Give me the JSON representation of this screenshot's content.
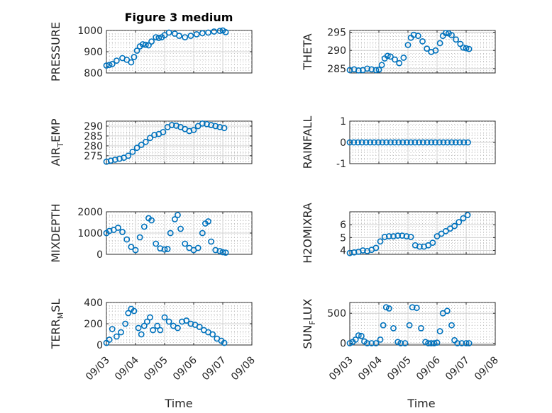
{
  "figure": {
    "title": "Figure 3 medium",
    "xlabel": "Time",
    "x_tick_labels": [
      "09/03",
      "09/04",
      "09/05",
      "09/06",
      "09/07",
      "09/08"
    ],
    "marker_color": "#0072BD"
  },
  "chart_data": [
    {
      "type": "scatter",
      "title": "Figure 3 medium",
      "ylabel": "PRESSURE",
      "ylabel_parts": [
        "PRESSURE"
      ],
      "xlim": [
        0,
        5
      ],
      "ylim": [
        800,
        1000
      ],
      "yticks": [
        800,
        900,
        1000
      ],
      "grid": true,
      "x": [
        0.0,
        0.1,
        0.2,
        0.35,
        0.55,
        0.7,
        0.85,
        0.95,
        1.05,
        1.15,
        1.25,
        1.35,
        1.45,
        1.55,
        1.7,
        1.8,
        1.9,
        2.0,
        2.15,
        2.35,
        2.5,
        2.7,
        2.9,
        3.1,
        3.3,
        3.5,
        3.7,
        3.9,
        4.0,
        4.1
      ],
      "y": [
        835,
        838,
        842,
        858,
        870,
        862,
        850,
        875,
        905,
        925,
        935,
        933,
        930,
        948,
        968,
        965,
        968,
        978,
        990,
        985,
        975,
        968,
        975,
        982,
        987,
        990,
        995,
        998,
        1000,
        992
      ]
    },
    {
      "type": "scatter",
      "ylabel": "THETA",
      "ylabel_parts": [
        "THETA"
      ],
      "xlim": [
        0,
        5
      ],
      "ylim": [
        283.8,
        295.5
      ],
      "yticks": [
        285,
        290,
        295
      ],
      "grid": true,
      "x": [
        0.0,
        0.15,
        0.3,
        0.45,
        0.6,
        0.75,
        0.9,
        1.0,
        1.1,
        1.2,
        1.3,
        1.4,
        1.55,
        1.7,
        1.85,
        2.0,
        2.1,
        2.2,
        2.35,
        2.5,
        2.65,
        2.8,
        2.95,
        3.1,
        3.2,
        3.3,
        3.4,
        3.5,
        3.65,
        3.8,
        3.9,
        4.0,
        4.1
      ],
      "y": [
        284.6,
        284.8,
        284.5,
        284.6,
        285.0,
        284.8,
        284.6,
        284.7,
        286.0,
        287.8,
        288.5,
        288.3,
        287.5,
        286.5,
        288.0,
        291.5,
        293.5,
        294.3,
        294.0,
        292.5,
        290.5,
        289.6,
        290.0,
        292.0,
        294.0,
        294.8,
        294.7,
        294.2,
        293.0,
        291.8,
        290.8,
        290.6,
        290.4
      ]
    },
    {
      "type": "scatter",
      "ylabel": "AIR_TEMP",
      "ylabel_parts": [
        "AIR",
        "T",
        "EMP"
      ],
      "xlim": [
        0,
        5
      ],
      "ylim": [
        271,
        292.5
      ],
      "yticks": [
        275,
        280,
        285,
        290
      ],
      "grid": true,
      "x": [
        0.0,
        0.15,
        0.3,
        0.45,
        0.6,
        0.75,
        0.9,
        1.05,
        1.2,
        1.35,
        1.5,
        1.65,
        1.8,
        1.95,
        2.1,
        2.25,
        2.4,
        2.55,
        2.7,
        2.85,
        3.0,
        3.15,
        3.3,
        3.45,
        3.6,
        3.75,
        3.9,
        4.05
      ],
      "y": [
        272.0,
        272.5,
        273.0,
        273.5,
        274.0,
        275.0,
        277.0,
        279.0,
        280.5,
        282.0,
        284.0,
        285.5,
        286.0,
        287.0,
        289.5,
        290.5,
        290.2,
        289.5,
        288.5,
        287.5,
        288.0,
        290.0,
        291.3,
        291.0,
        290.5,
        290.0,
        289.5,
        289.0
      ]
    },
    {
      "type": "scatter",
      "ylabel": "RAINFALL",
      "ylabel_parts": [
        "RAINFALL"
      ],
      "xlim": [
        0,
        5
      ],
      "ylim": [
        -1,
        1
      ],
      "yticks": [
        -1,
        0,
        1
      ],
      "grid": true,
      "x": [
        0.0,
        0.14,
        0.28,
        0.42,
        0.56,
        0.7,
        0.84,
        0.98,
        1.12,
        1.26,
        1.4,
        1.54,
        1.68,
        1.82,
        1.96,
        2.1,
        2.24,
        2.38,
        2.52,
        2.66,
        2.8,
        2.94,
        3.08,
        3.22,
        3.36,
        3.5,
        3.64,
        3.78,
        3.92,
        4.06
      ],
      "y": [
        0,
        0,
        0,
        0,
        0,
        0,
        0,
        0,
        0,
        0,
        0,
        0,
        0,
        0,
        0,
        0,
        0,
        0,
        0,
        0,
        0,
        0,
        0,
        0,
        0,
        0,
        0,
        0,
        0,
        0
      ]
    },
    {
      "type": "scatter",
      "ylabel": "MIXDEPTH",
      "ylabel_parts": [
        "MIXDEPTH"
      ],
      "xlim": [
        0,
        5
      ],
      "ylim": [
        0,
        2000
      ],
      "yticks": [
        0,
        1000,
        2000
      ],
      "grid": true,
      "x": [
        0.0,
        0.1,
        0.25,
        0.4,
        0.55,
        0.7,
        0.85,
        1.0,
        1.15,
        1.3,
        1.45,
        1.55,
        1.7,
        1.85,
        2.0,
        2.1,
        2.2,
        2.35,
        2.45,
        2.55,
        2.7,
        2.85,
        3.0,
        3.15,
        3.3,
        3.4,
        3.5,
        3.6,
        3.75,
        3.9,
        4.0,
        4.1
      ],
      "y": [
        1000,
        1100,
        1150,
        1250,
        1050,
        700,
        350,
        200,
        800,
        1300,
        1700,
        1600,
        500,
        280,
        230,
        250,
        1000,
        1650,
        1850,
        1200,
        500,
        300,
        200,
        300,
        1000,
        1450,
        1550,
        600,
        200,
        150,
        100,
        80
      ]
    },
    {
      "type": "scatter",
      "ylabel": "H2OMIXRA",
      "ylabel_parts": [
        "H2OMIXRA"
      ],
      "xlim": [
        0,
        5
      ],
      "ylim": [
        3.7,
        7.0
      ],
      "yticks": [
        4,
        5,
        6
      ],
      "grid": true,
      "x": [
        0.0,
        0.15,
        0.3,
        0.45,
        0.6,
        0.75,
        0.9,
        1.05,
        1.2,
        1.35,
        1.5,
        1.65,
        1.8,
        1.95,
        2.1,
        2.25,
        2.4,
        2.55,
        2.7,
        2.85,
        3.0,
        3.15,
        3.3,
        3.45,
        3.6,
        3.75,
        3.9,
        4.05
      ],
      "y": [
        3.8,
        3.85,
        3.9,
        4.0,
        3.95,
        4.05,
        4.2,
        4.7,
        5.05,
        5.1,
        5.1,
        5.15,
        5.15,
        5.1,
        5.05,
        4.4,
        4.3,
        4.3,
        4.4,
        4.6,
        5.1,
        5.3,
        5.5,
        5.7,
        5.9,
        6.2,
        6.5,
        6.75
      ]
    },
    {
      "type": "scatter",
      "ylabel": "TERR_MSL",
      "ylabel_parts": [
        "TERR",
        "M",
        "SL"
      ],
      "xlim": [
        0,
        5
      ],
      "ylim": [
        0,
        400
      ],
      "yticks": [
        0,
        200,
        400
      ],
      "grid": true,
      "x": [
        0.0,
        0.1,
        0.2,
        0.35,
        0.5,
        0.65,
        0.75,
        0.85,
        0.95,
        1.1,
        1.2,
        1.3,
        1.4,
        1.5,
        1.6,
        1.75,
        1.85,
        2.0,
        2.15,
        2.3,
        2.45,
        2.6,
        2.75,
        2.9,
        3.05,
        3.2,
        3.35,
        3.5,
        3.65,
        3.8,
        3.95,
        4.05
      ],
      "y": [
        20,
        50,
        150,
        80,
        120,
        200,
        300,
        340,
        320,
        160,
        100,
        180,
        220,
        260,
        140,
        180,
        140,
        260,
        220,
        180,
        160,
        220,
        230,
        200,
        190,
        170,
        140,
        120,
        100,
        60,
        40,
        20
      ]
    },
    {
      "type": "scatter",
      "ylabel": "SUN_FLUX",
      "ylabel_parts": [
        "SUN",
        "F",
        "LUX"
      ],
      "xlim": [
        0,
        5
      ],
      "ylim": [
        -30,
        680
      ],
      "yticks": [
        0,
        500
      ],
      "grid": true,
      "x": [
        0.0,
        0.1,
        0.2,
        0.3,
        0.4,
        0.5,
        0.6,
        0.75,
        0.9,
        1.05,
        1.15,
        1.25,
        1.35,
        1.5,
        1.65,
        1.75,
        1.9,
        2.05,
        2.15,
        2.3,
        2.45,
        2.6,
        2.7,
        2.8,
        2.9,
        3.0,
        3.1,
        3.2,
        3.35,
        3.5,
        3.6,
        3.7,
        3.85,
        4.0,
        4.1
      ],
      "y": [
        0,
        20,
        60,
        130,
        120,
        30,
        0,
        0,
        0,
        60,
        300,
        600,
        580,
        250,
        20,
        0,
        0,
        300,
        600,
        590,
        250,
        20,
        0,
        0,
        0,
        10,
        200,
        500,
        540,
        300,
        50,
        0,
        0,
        0,
        0
      ]
    }
  ]
}
